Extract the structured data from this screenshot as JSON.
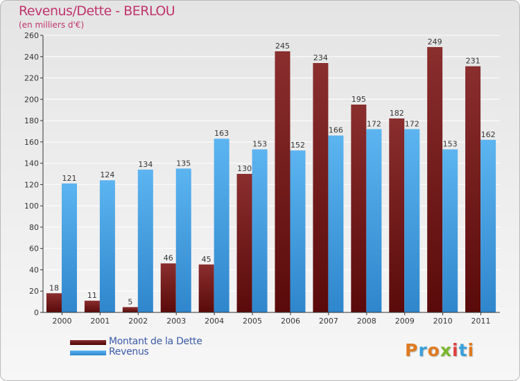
{
  "header": {
    "title": "Revenus/Dette - BERLOU",
    "subtitle": "(en milliers d'€)"
  },
  "chart_data": {
    "type": "bar",
    "categories": [
      "2000",
      "2001",
      "2002",
      "2003",
      "2004",
      "2005",
      "2006",
      "2007",
      "2008",
      "2009",
      "2010",
      "2011"
    ],
    "series": [
      {
        "name": "Montant de la Dette",
        "color": "#7a1a1a",
        "values": [
          18,
          11,
          5,
          46,
          45,
          130,
          245,
          234,
          195,
          182,
          249,
          231
        ]
      },
      {
        "name": "Revenus",
        "color": "#3f9ee6",
        "values": [
          121,
          124,
          134,
          135,
          163,
          153,
          152,
          166,
          172,
          172,
          153,
          162
        ]
      }
    ],
    "ylim": [
      0,
      260
    ],
    "yticks": [
      0,
      20,
      40,
      60,
      80,
      100,
      120,
      140,
      160,
      180,
      200,
      220,
      240,
      260
    ],
    "grid": true,
    "legend": "bottom-left"
  },
  "legend": {
    "items": [
      {
        "label": "Montant de la Dette",
        "color": "#6e0f0f"
      },
      {
        "label": "Revenus",
        "color": "#3f9ee6"
      }
    ]
  },
  "logo": {
    "letters": [
      "P",
      "r",
      "o",
      "x",
      "i",
      "t",
      "i"
    ],
    "colors": [
      "#e07a1f",
      "#3aa0dc",
      "#e07a1f",
      "#7ab82b",
      "#e04040",
      "#3aa0dc",
      "#e07a1f"
    ]
  }
}
